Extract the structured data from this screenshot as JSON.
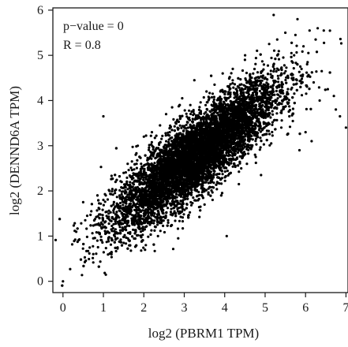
{
  "chart_data": {
    "type": "scatter",
    "title": "",
    "xlabel": "log2 (PBRM1 TPM)",
    "ylabel": "log2 (DENND6A TPM)",
    "xlim": [
      -0.25,
      7.05
    ],
    "ylim": [
      -0.25,
      6.05
    ],
    "xticks": [
      0,
      1,
      2,
      3,
      4,
      5,
      6,
      7
    ],
    "yticks": [
      0,
      1,
      2,
      3,
      4,
      5,
      6
    ],
    "grid": false,
    "legend": "none",
    "annotations": [
      "p−value = 0",
      "R = 0.8"
    ],
    "point_color": "#000000",
    "series": [
      {
        "points": [
          [
            0.0,
            0.0
          ],
          [
            0.5,
            1.75
          ],
          [
            0.55,
            1.35
          ],
          [
            0.6,
            1.45
          ],
          [
            0.7,
            1.55
          ],
          [
            0.75,
            0.95
          ],
          [
            0.8,
            1.25
          ],
          [
            0.85,
            0.9
          ],
          [
            0.9,
            1.6
          ],
          [
            0.95,
            1.3
          ],
          [
            1.0,
            1.8
          ],
          [
            1.0,
            3.65
          ],
          [
            1.05,
            1.05
          ],
          [
            1.1,
            1.4
          ],
          [
            1.15,
            2.0
          ],
          [
            1.2,
            0.95
          ],
          [
            1.2,
            0.6
          ],
          [
            1.25,
            1.7
          ],
          [
            1.3,
            2.2
          ],
          [
            1.3,
            1.15
          ],
          [
            1.35,
            0.75
          ],
          [
            1.4,
            1.9
          ],
          [
            1.45,
            1.5
          ],
          [
            1.5,
            2.4
          ],
          [
            1.5,
            0.85
          ],
          [
            1.55,
            1.2
          ],
          [
            1.6,
            2.6
          ],
          [
            1.6,
            1.65
          ],
          [
            1.65,
            0.9
          ],
          [
            1.7,
            2.0
          ],
          [
            1.75,
            1.35
          ],
          [
            1.8,
            2.8
          ],
          [
            1.8,
            1.1
          ],
          [
            1.85,
            3.0
          ],
          [
            1.9,
            1.75
          ],
          [
            1.95,
            2.3
          ],
          [
            2.0,
            1.5
          ],
          [
            2.0,
            3.2
          ],
          [
            2.05,
            0.8
          ],
          [
            2.1,
            2.1
          ],
          [
            2.15,
            1.25
          ],
          [
            2.2,
            3.3
          ],
          [
            2.25,
            1.8
          ],
          [
            2.3,
            2.55
          ],
          [
            2.35,
            1.0
          ],
          [
            2.4,
            3.45
          ],
          [
            2.45,
            1.55
          ],
          [
            2.5,
            2.95
          ],
          [
            2.55,
            3.7
          ],
          [
            2.6,
            1.35
          ],
          [
            2.65,
            2.2
          ],
          [
            2.7,
            3.85
          ],
          [
            2.75,
            1.7
          ],
          [
            2.8,
            3.1
          ],
          [
            2.85,
            0.95
          ],
          [
            2.9,
            2.45
          ],
          [
            2.95,
            4.05
          ],
          [
            3.0,
            1.9
          ],
          [
            3.0,
            3.4
          ],
          [
            3.05,
            2.75
          ],
          [
            3.1,
            1.45
          ],
          [
            3.15,
            3.9
          ],
          [
            3.2,
            2.3
          ],
          [
            3.25,
            4.45
          ],
          [
            3.3,
            2.0
          ],
          [
            3.35,
            3.15
          ],
          [
            3.4,
            1.65
          ],
          [
            3.45,
            3.6
          ],
          [
            3.5,
            2.55
          ],
          [
            3.55,
            4.2
          ],
          [
            3.6,
            2.05
          ],
          [
            3.65,
            3.75
          ],
          [
            3.7,
            1.8
          ],
          [
            3.75,
            4.35
          ],
          [
            3.8,
            2.65
          ],
          [
            3.85,
            3.35
          ],
          [
            3.9,
            2.25
          ],
          [
            3.95,
            4.6
          ],
          [
            4.0,
            3.0
          ],
          [
            4.05,
            1.0
          ],
          [
            4.1,
            3.85
          ],
          [
            4.15,
            2.4
          ],
          [
            4.2,
            4.7
          ],
          [
            4.25,
            2.9
          ],
          [
            4.3,
            3.55
          ],
          [
            4.35,
            2.15
          ],
          [
            4.4,
            4.15
          ],
          [
            4.45,
            3.2
          ],
          [
            4.5,
            4.9
          ],
          [
            4.55,
            2.6
          ],
          [
            4.6,
            3.95
          ],
          [
            4.65,
            3.35
          ],
          [
            4.7,
            4.4
          ],
          [
            4.75,
            2.8
          ],
          [
            4.8,
            5.1
          ],
          [
            4.85,
            3.7
          ],
          [
            4.9,
            2.35
          ],
          [
            4.95,
            4.55
          ],
          [
            5.0,
            3.5
          ],
          [
            5.05,
            4.0
          ],
          [
            5.1,
            5.25
          ],
          [
            5.15,
            3.05
          ],
          [
            5.2,
            4.75
          ],
          [
            5.25,
            3.85
          ],
          [
            5.3,
            5.35
          ],
          [
            5.35,
            4.3
          ],
          [
            5.4,
            3.4
          ],
          [
            5.45,
            4.95
          ],
          [
            5.5,
            5.5
          ],
          [
            5.55,
            4.15
          ],
          [
            5.6,
            3.65
          ],
          [
            5.65,
            5.05
          ],
          [
            5.7,
            4.5
          ],
          [
            5.75,
            5.45
          ],
          [
            5.8,
            5.8
          ],
          [
            5.85,
            2.9
          ],
          [
            5.9,
            4.7
          ],
          [
            5.95,
            5.2
          ],
          [
            6.0,
            3.3
          ],
          [
            6.05,
            4.85
          ],
          [
            6.1,
            5.55
          ],
          [
            6.15,
            3.1
          ],
          [
            6.2,
            4.4
          ],
          [
            6.25,
            5.35
          ],
          [
            6.3,
            5.6
          ],
          [
            6.35,
            4.0
          ],
          [
            6.4,
            4.65
          ],
          [
            6.45,
            5.55
          ],
          [
            6.55,
            4.25
          ],
          [
            6.7,
            4.1
          ],
          [
            6.75,
            3.8
          ],
          [
            6.85,
            3.65
          ],
          [
            7.0,
            3.4
          ]
        ]
      }
    ],
    "trend": {
      "slope": 0.68,
      "intercept": 0.55,
      "x_center": 3.3,
      "x_sd": 1.0,
      "resid_sd": 0.42,
      "n_points": 8500
    }
  }
}
